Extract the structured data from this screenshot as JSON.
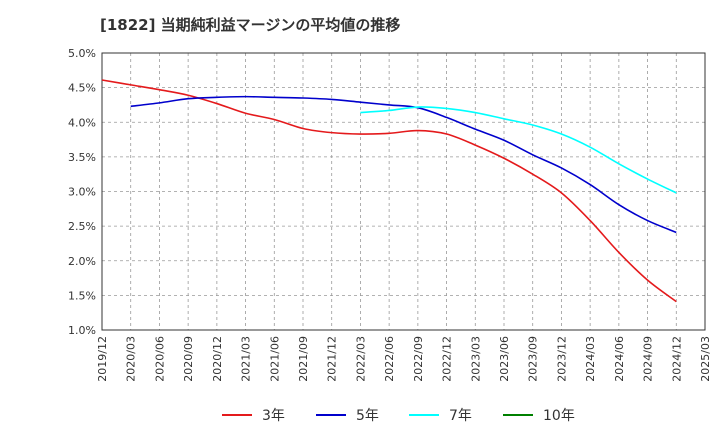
{
  "chart_data": {
    "type": "line",
    "title": "[1822]  当期純利益マージンの平均値の推移",
    "xlabel": "",
    "ylabel": "",
    "ylim": [
      0.01,
      0.05
    ],
    "y_ticks": [
      0.01,
      0.015,
      0.02,
      0.025,
      0.03,
      0.035,
      0.04,
      0.045,
      0.05
    ],
    "y_tick_labels": [
      "1.0%",
      "1.5%",
      "2.0%",
      "2.5%",
      "3.0%",
      "3.5%",
      "4.0%",
      "4.5%",
      "5.0%"
    ],
    "x": [
      "2019/12",
      "2020/03",
      "2020/06",
      "2020/09",
      "2020/12",
      "2021/03",
      "2021/06",
      "2021/09",
      "2021/12",
      "2022/03",
      "2022/06",
      "2022/09",
      "2022/12",
      "2023/03",
      "2023/06",
      "2023/09",
      "2023/12",
      "2024/03",
      "2024/06",
      "2024/09",
      "2024/12",
      "2025/03"
    ],
    "grid": true,
    "legend_position": "bottom",
    "series": [
      {
        "name": "3年",
        "color": "#e41a1c",
        "values": [
          0.0461,
          0.0454,
          0.0447,
          0.0439,
          0.0427,
          0.0413,
          0.0404,
          0.0391,
          0.0385,
          0.0383,
          0.0384,
          0.0388,
          0.0383,
          0.0367,
          0.0348,
          0.0325,
          0.0298,
          0.0258,
          0.0212,
          0.0172,
          0.0141,
          null
        ]
      },
      {
        "name": "5年",
        "color": "#0000cc",
        "values": [
          null,
          0.0423,
          0.0428,
          0.0434,
          0.0436,
          0.0437,
          0.0436,
          0.0435,
          0.0433,
          0.0429,
          0.0425,
          0.0421,
          0.0407,
          0.039,
          0.0374,
          0.0353,
          0.0334,
          0.031,
          0.0281,
          0.0258,
          0.0241,
          null
        ]
      },
      {
        "name": "7年",
        "color": "#00ffff",
        "values": [
          null,
          null,
          null,
          null,
          null,
          null,
          null,
          null,
          null,
          0.0414,
          0.0417,
          0.0422,
          0.042,
          0.0414,
          0.0405,
          0.0396,
          0.0383,
          0.0364,
          0.034,
          0.0318,
          0.0298,
          null
        ]
      },
      {
        "name": "10年",
        "color": "#008000",
        "values": [
          null,
          null,
          null,
          null,
          null,
          null,
          null,
          null,
          null,
          null,
          null,
          null,
          null,
          null,
          null,
          null,
          null,
          null,
          null,
          null,
          null,
          null
        ]
      }
    ]
  }
}
